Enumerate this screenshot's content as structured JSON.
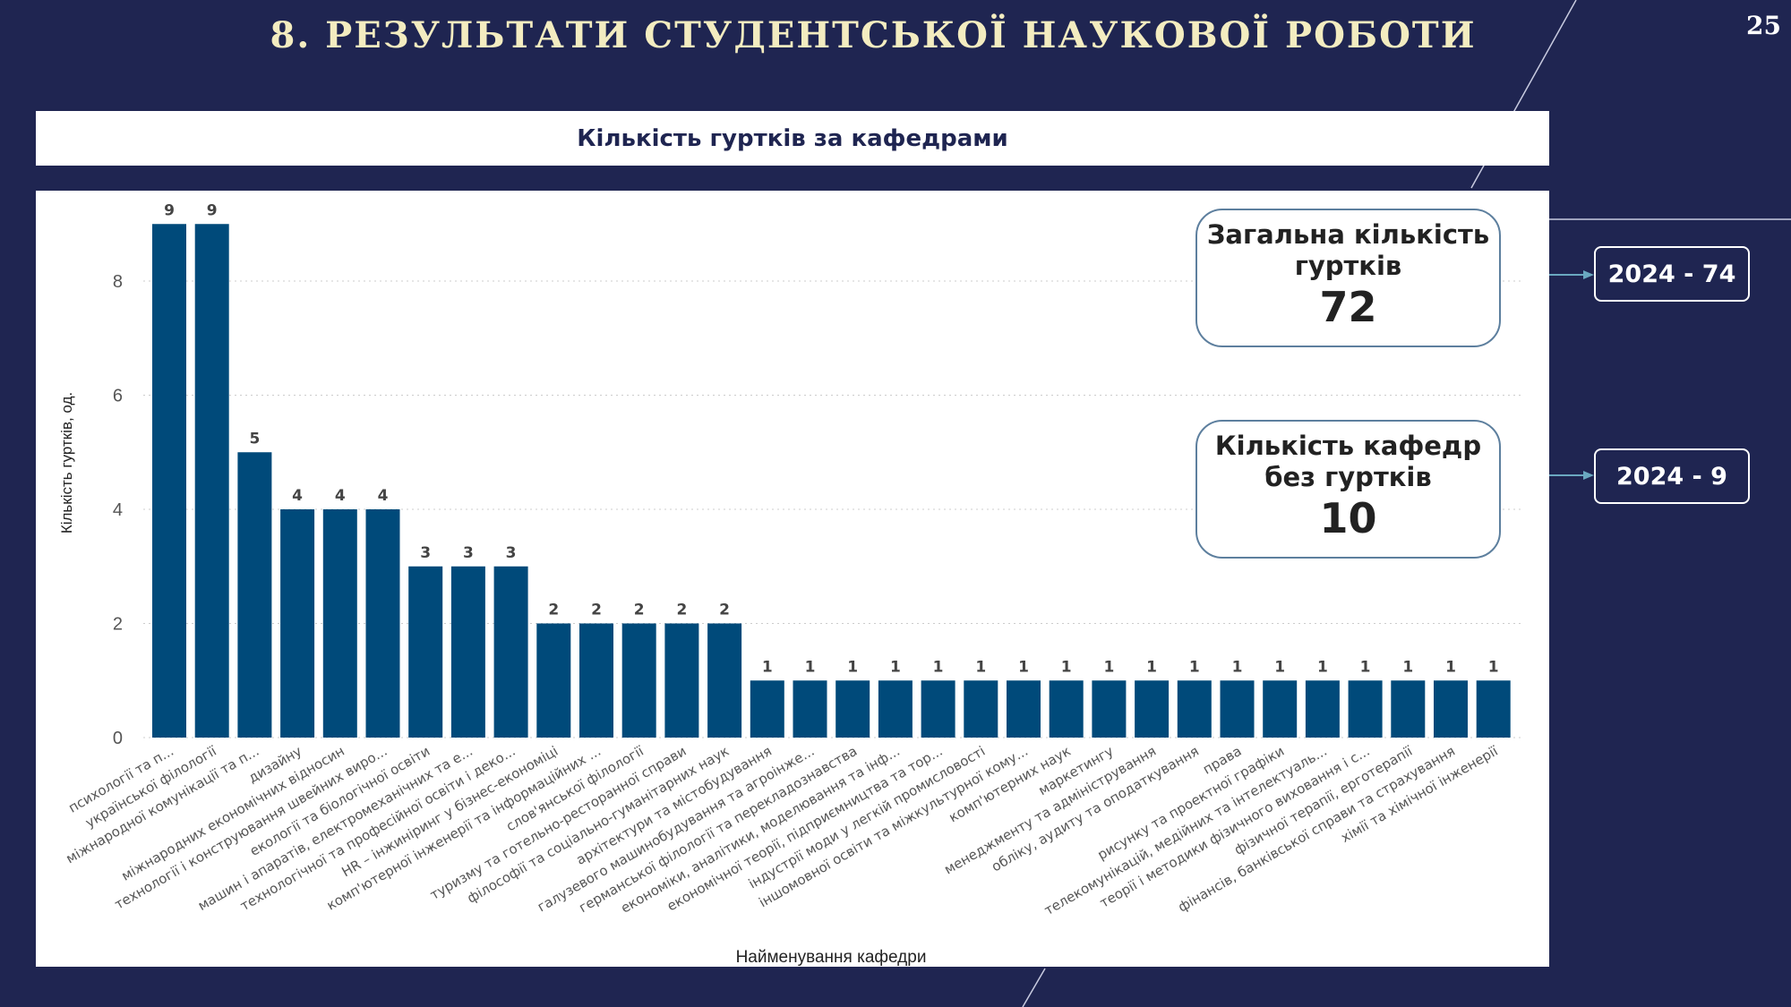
{
  "title": "8. РЕЗУЛЬТАТИ СТУДЕНТСЬКОЇ НАУКОВОЇ РОБОТИ",
  "page_number": "25",
  "chart_header": "Кількість гуртків за кафедрами",
  "cards": [
    {
      "label": "Загальна кількість гуртків",
      "value": "72",
      "previous": "2024 - 74"
    },
    {
      "label": "Кількість кафедр без гуртків",
      "value": "10",
      "previous": "2024 - 9"
    }
  ],
  "colors": {
    "bar": "#004a7a",
    "background": "#1f2551",
    "title": "#f3ecc0",
    "arrow": "#6aa8c0"
  },
  "chart_data": {
    "type": "bar",
    "xlabel": "Найменування кафедри",
    "ylabel": "Кількість гуртків, од.",
    "ylim": [
      0,
      9
    ],
    "yticks": [
      0,
      2,
      4,
      6,
      8
    ],
    "grid": true,
    "categories": [
      "психології та п...",
      "української філології",
      "міжнародної комунікації та п...",
      "дизайну",
      "міжнародних економічних відносин",
      "технології і конструювання швейних виро...",
      "екології та біологічної освіти",
      "машин і апаратів, електромеханічних та е...",
      "технологічної та професійної освіти і деко...",
      "HR – інжиніринг у бізнес-економіці",
      "комп'ютерної інженерії та інформаційних ...",
      "слов'янської філології",
      "туризму та готельно-ресторанної справи",
      "філософії та соціально-гуманітарних наук",
      "архітектури та містобудування",
      "галузевого машинобудування та агроінже...",
      "германської філології та перекладознавства",
      "економіки, аналітики, моделювання та інф...",
      "економічної теорії, підприємництва та тор...",
      "індустрії моди у легкій промисловості",
      "іншомовної освіти та міжкультурної кому...",
      "комп'ютерних наук",
      "маркетингу",
      "менеджменту та адміністрування",
      "обліку, аудиту та оподаткування",
      "права",
      "рисунку та проектної графіки",
      "телекомунікацій, медійних та інтелектуаль...",
      "теорії і методики фізичного виховання і с...",
      "фізичної терапії, ерготерапії",
      "фінансів, банківської справи та страхування",
      "хімії та хімічної інженерії"
    ],
    "values": [
      9,
      9,
      5,
      4,
      4,
      4,
      3,
      3,
      3,
      2,
      2,
      2,
      2,
      2,
      1,
      1,
      1,
      1,
      1,
      1,
      1,
      1,
      1,
      1,
      1,
      1,
      1,
      1,
      1,
      1,
      1,
      1
    ]
  }
}
